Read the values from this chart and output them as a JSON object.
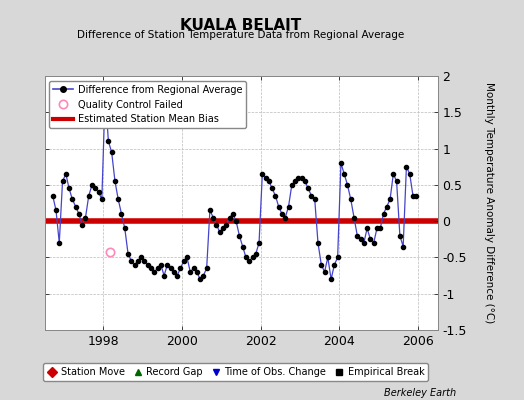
{
  "title": "KUALA BELAIT",
  "subtitle": "Difference of Station Temperature Data from Regional Average",
  "ylabel": "Monthly Temperature Anomaly Difference (°C)",
  "watermark": "Berkeley Earth",
  "xlim": [
    1996.5,
    2006.5
  ],
  "ylim": [
    -1.5,
    2.0
  ],
  "yticks": [
    -1.5,
    -1.0,
    -0.5,
    0.0,
    0.5,
    1.0,
    1.5,
    2.0
  ],
  "ytick_labels": [
    "-1.5",
    "-1",
    "-0.5",
    "0",
    "0.5",
    "1",
    "1.5",
    "2"
  ],
  "xticks": [
    1998,
    2000,
    2002,
    2004,
    2006
  ],
  "mean_bias": 0.0,
  "bias_color": "#cc0000",
  "line_color": "#4444cc",
  "marker_color": "#000000",
  "fig_bg_color": "#d8d8d8",
  "plot_bg_color": "#ffffff",
  "qc_fail_x": [
    1998.17
  ],
  "qc_fail_y": [
    -0.42
  ],
  "times": [
    1996.708,
    1996.792,
    1996.875,
    1996.958,
    1997.042,
    1997.125,
    1997.208,
    1997.292,
    1997.375,
    1997.458,
    1997.542,
    1997.625,
    1997.708,
    1997.792,
    1997.875,
    1997.958,
    1998.042,
    1998.125,
    1998.208,
    1998.292,
    1998.375,
    1998.458,
    1998.542,
    1998.625,
    1998.708,
    1998.792,
    1998.875,
    1998.958,
    1999.042,
    1999.125,
    1999.208,
    1999.292,
    1999.375,
    1999.458,
    1999.542,
    1999.625,
    1999.708,
    1999.792,
    1999.875,
    1999.958,
    2000.042,
    2000.125,
    2000.208,
    2000.292,
    2000.375,
    2000.458,
    2000.542,
    2000.625,
    2000.708,
    2000.792,
    2000.875,
    2000.958,
    2001.042,
    2001.125,
    2001.208,
    2001.292,
    2001.375,
    2001.458,
    2001.542,
    2001.625,
    2001.708,
    2001.792,
    2001.875,
    2001.958,
    2002.042,
    2002.125,
    2002.208,
    2002.292,
    2002.375,
    2002.458,
    2002.542,
    2002.625,
    2002.708,
    2002.792,
    2002.875,
    2002.958,
    2003.042,
    2003.125,
    2003.208,
    2003.292,
    2003.375,
    2003.458,
    2003.542,
    2003.625,
    2003.708,
    2003.792,
    2003.875,
    2003.958,
    2004.042,
    2004.125,
    2004.208,
    2004.292,
    2004.375,
    2004.458,
    2004.542,
    2004.625,
    2004.708,
    2004.792,
    2004.875,
    2004.958,
    2005.042,
    2005.125,
    2005.208,
    2005.292,
    2005.375,
    2005.458,
    2005.542,
    2005.625,
    2005.708,
    2005.792,
    2005.875,
    2005.958
  ],
  "values": [
    0.35,
    0.15,
    -0.3,
    0.55,
    0.65,
    0.45,
    0.3,
    0.2,
    0.1,
    -0.05,
    0.05,
    0.35,
    0.5,
    0.45,
    0.4,
    0.3,
    1.75,
    1.1,
    0.95,
    0.55,
    0.3,
    0.1,
    -0.1,
    -0.45,
    -0.55,
    -0.6,
    -0.55,
    -0.5,
    -0.55,
    -0.6,
    -0.65,
    -0.7,
    -0.65,
    -0.6,
    -0.75,
    -0.6,
    -0.65,
    -0.7,
    -0.75,
    -0.65,
    -0.55,
    -0.5,
    -0.7,
    -0.65,
    -0.7,
    -0.8,
    -0.75,
    -0.65,
    0.15,
    0.05,
    -0.05,
    -0.15,
    -0.1,
    -0.05,
    0.05,
    0.1,
    0.0,
    -0.2,
    -0.35,
    -0.5,
    -0.55,
    -0.5,
    -0.45,
    -0.3,
    0.65,
    0.6,
    0.55,
    0.45,
    0.35,
    0.2,
    0.1,
    0.05,
    0.2,
    0.5,
    0.55,
    0.6,
    0.6,
    0.55,
    0.45,
    0.35,
    0.3,
    -0.3,
    -0.6,
    -0.7,
    -0.5,
    -0.8,
    -0.6,
    -0.5,
    0.8,
    0.65,
    0.5,
    0.3,
    0.05,
    -0.2,
    -0.25,
    -0.3,
    -0.1,
    -0.25,
    -0.3,
    -0.1,
    -0.1,
    0.1,
    0.2,
    0.3,
    0.65,
    0.55,
    -0.2,
    -0.35,
    0.75,
    0.65,
    0.35,
    0.35
  ]
}
